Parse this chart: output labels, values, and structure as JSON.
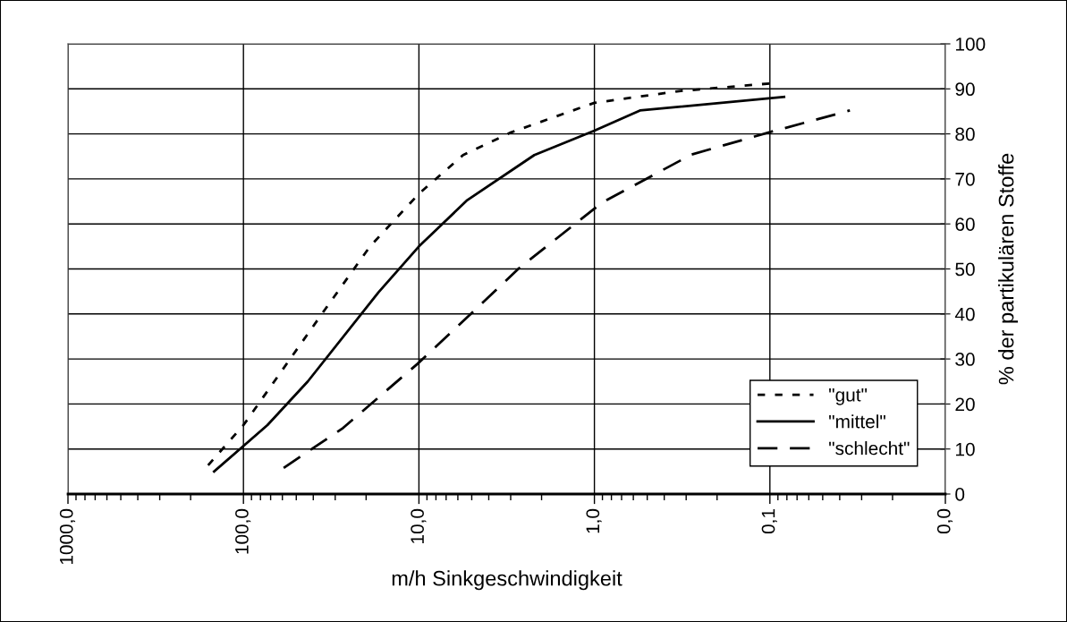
{
  "chart_data": {
    "type": "line",
    "xlabel": "m/h Sinkgeschwindigkeit",
    "ylabel": "% der partikulären Stoffe",
    "log": "x",
    "xlim": [
      1000,
      0.01
    ],
    "xticks": [
      {
        "value": 1000,
        "label": "1000,0"
      },
      {
        "value": 100,
        "label": "100,0"
      },
      {
        "value": 10,
        "label": "10,0"
      },
      {
        "value": 1,
        "label": "1,0"
      },
      {
        "value": 0.1,
        "label": "0,1"
      },
      {
        "value": 0.01,
        "label": "0,0"
      }
    ],
    "ylim": [
      0,
      100
    ],
    "yticks": [
      0,
      10,
      20,
      30,
      40,
      50,
      60,
      70,
      80,
      90,
      100
    ],
    "grid": true,
    "legend": "lower right",
    "marker": "none",
    "series": [
      {
        "name": "\"gut\"",
        "color": "#000000",
        "line_style": "dotted",
        "x": [
          159,
          100,
          35,
          19,
          10,
          5.6,
          3,
          1,
          0.33,
          0.1
        ],
        "values": [
          6.4,
          15.3,
          40.5,
          55,
          66.7,
          75.3,
          80.3,
          86.9,
          89.5,
          91.2
        ]
      },
      {
        "name": "\"mittel\"",
        "color": "#000000",
        "line_style": "solid",
        "x": [
          147,
          73,
          43,
          17,
          10,
          5.3,
          2.2,
          1,
          0.55,
          0.083
        ],
        "values": [
          5,
          15.3,
          25,
          44.8,
          55,
          65.3,
          75.3,
          80.7,
          85.2,
          88.2
        ]
      },
      {
        "name": "\"schlecht\"",
        "color": "#000000",
        "line_style": "dashed",
        "x": [
          59,
          27,
          10.2,
          5,
          2.7,
          1,
          0.85,
          0.28,
          0.1,
          0.035
        ],
        "values": [
          5.8,
          14.7,
          28.9,
          40.2,
          50.1,
          63.4,
          65.3,
          75.4,
          80.4,
          85.2
        ]
      }
    ]
  }
}
